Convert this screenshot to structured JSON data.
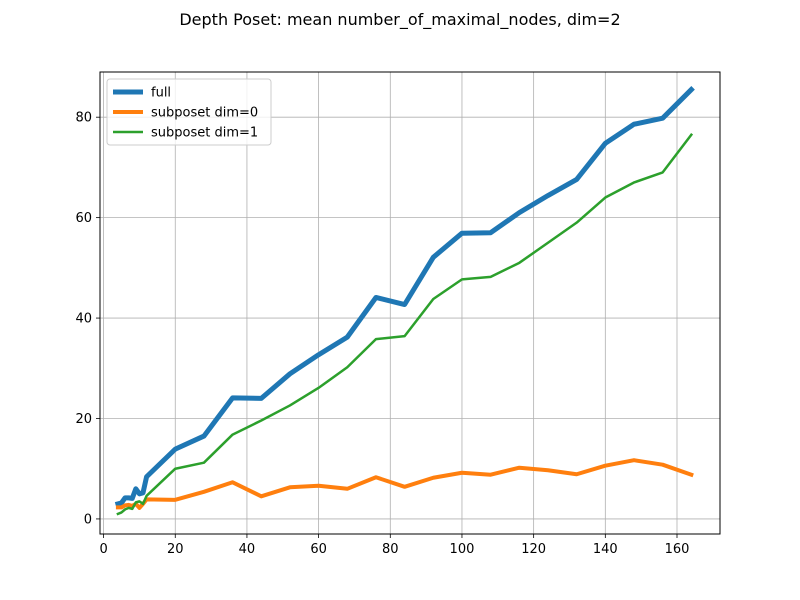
{
  "chart_data": {
    "type": "line",
    "title": "Depth Poset: mean number_of_maximal_nodes, dim=2",
    "xlabel": "",
    "ylabel": "",
    "xlim": [
      -1,
      172
    ],
    "ylim": [
      -3,
      89
    ],
    "xticks": [
      0,
      20,
      40,
      60,
      80,
      100,
      120,
      140,
      160
    ],
    "yticks": [
      0,
      20,
      40,
      60,
      80
    ],
    "xtick_labels": [
      "0",
      "20",
      "40",
      "60",
      "80",
      "100",
      "120",
      "140",
      "160"
    ],
    "ytick_labels": [
      "0",
      "20",
      "40",
      "60",
      "80"
    ],
    "grid": true,
    "legend_position": "top-left",
    "series": [
      {
        "name": "full",
        "color": "#1f77b4",
        "linewidth": 5,
        "x": [
          4,
          5,
          6,
          7,
          8,
          9,
          10,
          11,
          12,
          20,
          28,
          36,
          44,
          52,
          60,
          68,
          76,
          84,
          92,
          100,
          108,
          116,
          124,
          132,
          140,
          148,
          156,
          164
        ],
        "y": [
          3.0,
          3.2,
          4.2,
          4.2,
          4.1,
          6.0,
          5.0,
          5.2,
          8.4,
          13.9,
          16.5,
          24.1,
          24.0,
          28.9,
          32.7,
          36.2,
          44.1,
          42.7,
          52.1,
          56.9,
          57.0,
          61.0,
          64.4,
          67.6,
          74.8,
          78.6,
          79.8,
          85.5
        ]
      },
      {
        "name": "subposet dim=0",
        "color": "#ff7f0e",
        "linewidth": 4,
        "x": [
          4,
          5,
          6,
          7,
          8,
          9,
          10,
          11,
          12,
          20,
          28,
          36,
          44,
          52,
          60,
          68,
          76,
          84,
          92,
          100,
          108,
          116,
          124,
          132,
          140,
          148,
          156,
          164
        ],
        "y": [
          2.3,
          2.3,
          2.7,
          2.8,
          2.6,
          3.0,
          2.2,
          3.0,
          3.9,
          3.8,
          5.4,
          7.3,
          4.5,
          6.3,
          6.6,
          6.0,
          8.3,
          6.4,
          8.2,
          9.2,
          8.8,
          10.2,
          9.7,
          8.9,
          10.6,
          11.7,
          10.8,
          8.8
        ]
      },
      {
        "name": "subposet dim=1",
        "color": "#2ca02c",
        "linewidth": 2.5,
        "x": [
          4,
          5,
          6,
          7,
          8,
          9,
          10,
          11,
          12,
          20,
          28,
          36,
          44,
          52,
          60,
          68,
          76,
          84,
          92,
          100,
          108,
          116,
          124,
          132,
          140,
          148,
          156,
          164
        ],
        "y": [
          1.0,
          1.3,
          1.9,
          2.2,
          2.0,
          3.3,
          3.5,
          3.0,
          4.6,
          10.0,
          11.2,
          16.8,
          19.6,
          22.6,
          26.1,
          30.2,
          35.8,
          36.4,
          43.8,
          47.7,
          48.2,
          51.0,
          55.0,
          59.0,
          64.0,
          67.0,
          69.0,
          76.5
        ]
      }
    ]
  }
}
